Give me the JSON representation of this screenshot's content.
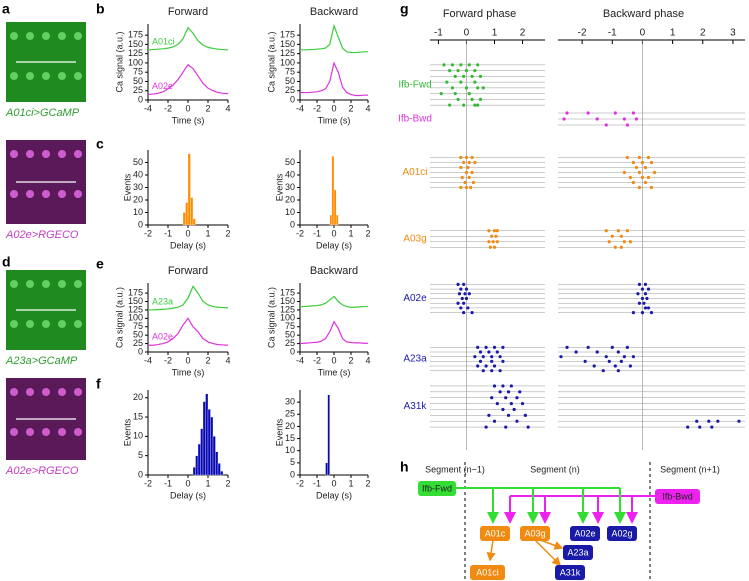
{
  "letters": [
    "a",
    "b",
    "c",
    "d",
    "e",
    "f",
    "g",
    "h"
  ],
  "images": [
    {
      "caption": "A01ci>GCaMP",
      "color": "#2e9e2e"
    },
    {
      "caption": "A02e>RGECO",
      "color": "#c23cc2"
    },
    {
      "caption": "A23a>GCaMP",
      "color": "#2e9e2e"
    },
    {
      "caption": "A02e>RGECO",
      "color": "#c23cc2"
    }
  ],
  "traces": [
    {
      "xlim": [
        -4,
        4
      ],
      "xticks": [
        -4,
        -2,
        0,
        2,
        4
      ],
      "ylim": [
        0,
        205
      ],
      "yticks": [
        0,
        25,
        50,
        75,
        100,
        125,
        150,
        175
      ],
      "xlabel": "Time (s)",
      "ylabel": "Ca signal (a.u.)",
      "x": [
        -4,
        -3.5,
        -3,
        -2.5,
        -2,
        -1.5,
        -1,
        -0.5,
        0,
        0.5,
        1,
        1.5,
        2,
        2.5,
        3,
        3.5,
        4
      ],
      "plots": [
        {
          "title": "Forward",
          "series": [
            {
              "name": "A01ci",
              "color": "#3ccc3c",
              "values": [
                135,
                136,
                137,
                138,
                140,
                143,
                150,
                165,
                195,
                180,
                160,
                148,
                142,
                139,
                137,
                136,
                135
              ]
            },
            {
              "name": "A02e",
              "color": "#dd33dd",
              "values": [
                15,
                16,
                18,
                22,
                30,
                40,
                55,
                75,
                95,
                85,
                65,
                45,
                32,
                25,
                20,
                18,
                17
              ]
            }
          ]
        },
        {
          "title": "Backward",
          "series": [
            {
              "color": "#3ccc3c",
              "values": [
                135,
                135,
                136,
                136,
                137,
                138,
                140,
                150,
                200,
                170,
                140,
                130,
                128,
                128,
                129,
                130,
                130
              ]
            },
            {
              "color": "#dd33dd",
              "values": [
                20,
                20,
                20,
                21,
                22,
                25,
                30,
                50,
                100,
                75,
                35,
                20,
                15,
                12,
                12,
                13,
                13
              ]
            }
          ]
        }
      ]
    },
    {
      "xlim": [
        -4,
        4
      ],
      "xticks": [
        -4,
        -2,
        0,
        2,
        4
      ],
      "ylim": [
        0,
        205
      ],
      "yticks": [
        0,
        25,
        50,
        75,
        100,
        125,
        150,
        175
      ],
      "xlabel": "Time (s)",
      "ylabel": "Ca signal (a.u.)",
      "x": [
        -4,
        -3.5,
        -3,
        -2.5,
        -2,
        -1.5,
        -1,
        -0.5,
        0,
        0.5,
        1,
        1.5,
        2,
        2.5,
        3,
        3.5,
        4
      ],
      "plots": [
        {
          "title": "Forward",
          "series": [
            {
              "name": "A23a",
              "color": "#3ccc3c",
              "values": [
                125,
                125,
                126,
                127,
                128,
                130,
                133,
                140,
                160,
                195,
                175,
                150,
                140,
                135,
                133,
                132,
                131
              ]
            },
            {
              "name": "A02e",
              "color": "#dd33dd",
              "values": [
                20,
                20,
                22,
                25,
                30,
                40,
                55,
                80,
                100,
                75,
                60,
                40,
                30,
                25,
                22,
                21,
                20
              ]
            }
          ]
        },
        {
          "title": "Backward",
          "series": [
            {
              "color": "#3ccc3c",
              "values": [
                135,
                135,
                136,
                137,
                138,
                140,
                145,
                155,
                165,
                150,
                140,
                135,
                133,
                133,
                134,
                135,
                135
              ]
            },
            {
              "color": "#dd33dd",
              "values": [
                25,
                26,
                27,
                28,
                29,
                32,
                40,
                60,
                90,
                70,
                40,
                30,
                28,
                27,
                27,
                26,
                26
              ]
            }
          ]
        }
      ]
    }
  ],
  "hists": [
    {
      "xlim": [
        -2,
        2
      ],
      "xticks": [
        -2,
        -1,
        0,
        1,
        2
      ],
      "xlabel": "Delay (s)",
      "ylabel": "Events",
      "color": "#ff8c00",
      "plots": [
        {
          "ylim": [
            0,
            60
          ],
          "yticks": [
            0,
            10,
            20,
            30,
            40,
            50
          ],
          "bins": [
            -0.25,
            -0.125,
            0,
            0.125,
            0.25,
            0.375
          ],
          "counts": [
            10,
            18,
            57,
            22,
            5
          ]
        },
        {
          "ylim": [
            0,
            60
          ],
          "yticks": [
            0,
            10,
            20,
            30,
            40,
            50
          ],
          "bins": [
            -0.25,
            -0.125,
            0,
            0.125,
            0.25
          ],
          "counts": [
            8,
            55,
            28,
            8
          ]
        }
      ]
    },
    {
      "xlim": [
        -2,
        2
      ],
      "xticks": [
        -2,
        -1,
        0,
        1,
        2
      ],
      "xlabel": "Delay (s)",
      "ylabel": "Events",
      "color": "#0a0ab4",
      "plots": [
        {
          "ylim": [
            0,
            22
          ],
          "yticks": [
            0,
            5,
            10,
            15,
            20
          ],
          "bins": [
            0.25,
            0.375,
            0.5,
            0.625,
            0.75,
            0.875,
            1,
            1.125,
            1.25,
            1.375,
            1.5,
            1.625,
            1.75
          ],
          "counts": [
            2,
            5,
            8,
            12,
            19,
            21,
            17,
            15,
            10,
            6,
            3,
            1
          ]
        },
        {
          "ylim": [
            0,
            35
          ],
          "yticks": [
            0,
            5,
            10,
            15,
            20,
            25,
            30
          ],
          "bins": [
            -0.5,
            -0.375,
            -0.25
          ],
          "counts": [
            5,
            33
          ]
        }
      ]
    }
  ],
  "raster": {
    "phases": [
      {
        "title": "Forward phase",
        "xlim": [
          -1.3,
          2.8
        ],
        "xticks": [
          -1,
          0,
          1,
          2
        ]
      },
      {
        "title": "Backward phase",
        "xlim": [
          -2.8,
          3.4
        ],
        "xticks": [
          -2,
          -1,
          0,
          1,
          2,
          3
        ]
      }
    ],
    "groups": [
      {
        "name": "Ifb-Fwd",
        "color": "#33bb33",
        "rows": [
          [
            [
              -0.8,
              -0.5,
              -0.2,
              0.1,
              0.4
            ],
            [
              -0.6,
              -0.3,
              0,
              0.3
            ],
            [
              -0.4,
              -0.1,
              0.2,
              0.5
            ],
            [
              -0.7,
              -0.2,
              0.3
            ],
            [
              -0.5,
              0,
              0.4,
              0.6
            ],
            [
              -0.9,
              -0.4,
              0.1
            ],
            [
              -0.3,
              0.2,
              0.5
            ],
            [
              -0.6,
              -0.1,
              0.3,
              0.4
            ]
          ],
          []
        ]
      },
      {
        "name": "Ifb-Bwd",
        "color": "#dd33dd",
        "rows": [
          [],
          [
            [
              -2.5,
              -1.8,
              -0.9,
              -0.3
            ],
            [
              -2.6,
              -1.5,
              -0.6,
              -0.2
            ],
            [
              -1.2,
              -0.5
            ]
          ]
        ]
      },
      {
        "name": "A01ci",
        "color": "#f08a10",
        "rows": [
          [
            [
              -0.2,
              0,
              0.2
            ],
            [
              -0.1,
              0.1,
              0.3
            ],
            [
              -0.2,
              0.05
            ],
            [
              0,
              0.2
            ],
            [
              -0.15,
              0.1
            ],
            [
              -0.05,
              0.25
            ],
            [
              -0.2,
              0,
              0.15
            ]
          ],
          [
            [
              -0.5,
              -0.1,
              0.2
            ],
            [
              -0.3,
              0,
              0.3
            ],
            [
              -0.2,
              0.1
            ],
            [
              -0.6,
              -0.1,
              0.4
            ],
            [
              -0.4,
              0,
              0.2
            ],
            [
              -0.3,
              0.1
            ],
            [
              -0.1,
              0.3
            ]
          ]
        ]
      },
      {
        "name": "A03g",
        "color": "#f08a10",
        "rows": [
          [
            [
              0.8,
              1,
              1.1
            ],
            [
              0.9,
              1.05
            ],
            [
              0.8,
              0.95,
              1.1
            ],
            [
              0.85,
              1
            ]
          ],
          [
            [
              -1.2,
              -0.8,
              -0.5
            ],
            [
              -1,
              -0.7
            ],
            [
              -1.1,
              -0.6,
              -0.4
            ],
            [
              -0.9,
              -0.7
            ]
          ]
        ]
      },
      {
        "name": "A02e",
        "color": "#1a1aa8",
        "rows": [
          [
            [
              -0.3,
              -0.1
            ],
            [
              -0.2,
              0
            ],
            [
              -0.25,
              -0.05,
              0.1
            ],
            [
              -0.15,
              0
            ],
            [
              -0.3,
              -0.1
            ],
            [
              -0.2,
              0.05
            ],
            [
              -0.1,
              0.2
            ]
          ],
          [
            [
              -0.1,
              0.1
            ],
            [
              0,
              0.2
            ],
            [
              -0.15,
              0.1
            ],
            [
              0,
              0.15
            ],
            [
              -0.1,
              0.05
            ],
            [
              0.1,
              0.2
            ],
            [
              -0.3,
              0,
              0.3
            ]
          ]
        ]
      },
      {
        "name": "A23a",
        "color": "#1a1aa8",
        "rows": [
          [
            [
              0.4,
              0.7,
              1,
              1.3
            ],
            [
              0.5,
              0.8,
              1.1
            ],
            [
              0.3,
              0.6,
              0.9,
              1.2
            ],
            [
              0.5,
              0.9,
              1.3
            ],
            [
              0.4,
              0.7,
              1
            ],
            [
              0.6,
              0.9,
              1.2
            ]
          ],
          [
            [
              -2.5,
              -1.8,
              -1,
              -0.5
            ],
            [
              -2.2,
              -1.5,
              -0.8
            ],
            [
              -2.7,
              -1.2,
              -0.6,
              -0.3
            ],
            [
              -1.9,
              -1.1,
              -0.7
            ],
            [
              -1.6,
              -0.9,
              -0.4
            ],
            [
              -1.3,
              -0.8
            ]
          ]
        ]
      },
      {
        "name": "A31k",
        "color": "#1a1aa8",
        "rows": [
          [
            [
              1,
              1.3,
              1.6
            ],
            [
              1.2,
              1.5,
              1.9
            ],
            [
              0.9,
              1.4,
              1.8
            ],
            [
              1.1,
              1.6,
              2
            ],
            [
              1.3,
              1.7
            ],
            [
              0.8,
              1.5,
              2.1
            ],
            [
              1,
              1.8
            ],
            [
              0.7,
              1.4,
              2.2
            ]
          ],
          [
            [],
            [],
            [],
            [],
            [],
            [],
            [
              1.8,
              2.2,
              2.5,
              3.2
            ],
            [
              1.5,
              1.9,
              2.3
            ]
          ]
        ]
      }
    ]
  },
  "diagram": {
    "segments": [
      "Segment (n−1)",
      "Segment (n)",
      "Segment (n+1)"
    ],
    "nodes": [
      "Ifb-Fwd",
      "Ifb-Bwd",
      "A01c",
      "A03g",
      "A02e",
      "A02g",
      "A23a",
      "A31k",
      "A01ci"
    ]
  }
}
